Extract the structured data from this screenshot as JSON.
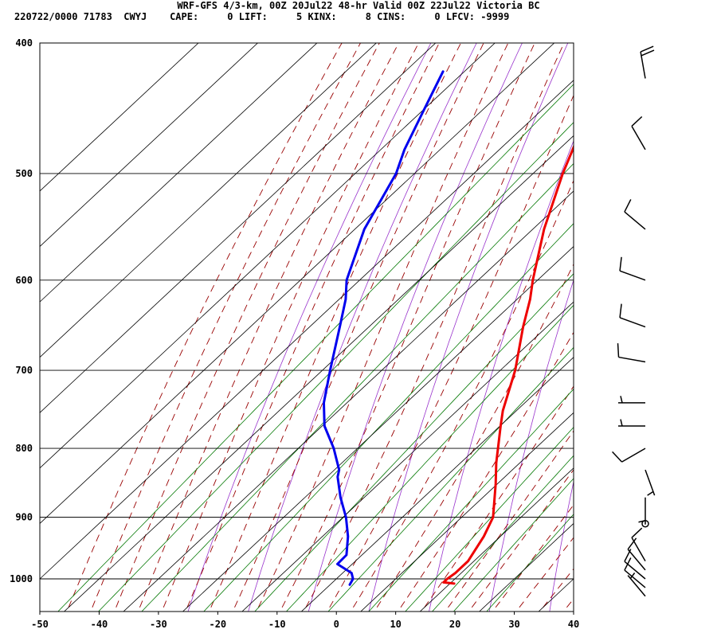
{
  "header": {
    "title": "WRF-GFS 4/3-km, 00Z 20Jul22 48-hr Valid 00Z 22Jul22 Victoria BC",
    "info": "220722/0000 71783  CWYJ    CAPE:     0 LIFT:     5 KINX:     8 CINS:     0 LFCV: -9999"
  },
  "chart_data": {
    "type": "line",
    "title": "WRF-GFS 4/3-km, 00Z 20Jul22 48-hr Valid 00Z 22Jul22 Victoria BC",
    "subtitle": "220722/0000 71783  CWYJ    CAPE:     0 LIFT:     5 KINX:     8 CINS:     0 LFCV: -9999",
    "xlabel": "",
    "ylabel": "",
    "x_axis": {
      "range": [
        -50,
        40
      ],
      "ticks": [
        -50,
        -40,
        -30,
        -20,
        -10,
        0,
        10,
        20,
        30,
        40
      ],
      "unit": "°C (skewed)"
    },
    "y_axis": {
      "range": [
        1040,
        400
      ],
      "scale": "log",
      "ticks": [
        400,
        500,
        600,
        700,
        800,
        900,
        1000
      ],
      "unit": "hPa"
    },
    "grid": true,
    "series": [
      {
        "color": "#ee0000",
        "points": [
          {
            "p": 1008,
            "t": 20.7
          },
          {
            "p": 1006,
            "t": 18.7
          },
          {
            "p": 1000,
            "t": 18.7
          },
          {
            "p": 990,
            "t": 19.0
          },
          {
            "p": 970,
            "t": 19.0
          },
          {
            "p": 930,
            "t": 17.2
          },
          {
            "p": 900,
            "t": 15.3
          },
          {
            "p": 880,
            "t": 13.1
          },
          {
            "p": 850,
            "t": 9.7
          },
          {
            "p": 820,
            "t": 6.0
          },
          {
            "p": 800,
            "t": 3.7
          },
          {
            "p": 770,
            "t": 0.1
          },
          {
            "p": 750,
            "t": -2.3
          },
          {
            "p": 700,
            "t": -7.5
          },
          {
            "p": 650,
            "t": -14.0
          },
          {
            "p": 620,
            "t": -17.8
          },
          {
            "p": 600,
            "t": -20.8
          },
          {
            "p": 550,
            "t": -28.1
          },
          {
            "p": 500,
            "t": -35.0
          },
          {
            "p": 470,
            "t": -39.0
          },
          {
            "p": 450,
            "t": -42.5
          },
          {
            "p": 420,
            "t": -47.3
          }
        ]
      },
      {
        "color": "#0000ee",
        "points": [
          {
            "p": 1010,
            "t": 3.3
          },
          {
            "p": 1000,
            "t": 2.8
          },
          {
            "p": 990,
            "t": 1.5
          },
          {
            "p": 975,
            "t": -2.5
          },
          {
            "p": 960,
            "t": -2.6
          },
          {
            "p": 930,
            "t": -5.7
          },
          {
            "p": 900,
            "t": -9.5
          },
          {
            "p": 870,
            "t": -14.0
          },
          {
            "p": 840,
            "t": -18.2
          },
          {
            "p": 830,
            "t": -19.2
          },
          {
            "p": 800,
            "t": -24.0
          },
          {
            "p": 770,
            "t": -29.6
          },
          {
            "p": 740,
            "t": -33.9
          },
          {
            "p": 700,
            "t": -38.7
          },
          {
            "p": 650,
            "t": -44.9
          },
          {
            "p": 620,
            "t": -48.9
          },
          {
            "p": 600,
            "t": -52.2
          },
          {
            "p": 550,
            "t": -58.4
          },
          {
            "p": 500,
            "t": -63.1
          },
          {
            "p": 480,
            "t": -66.0
          },
          {
            "p": 450,
            "t": -69.7
          },
          {
            "p": 420,
            "t": -73.6
          }
        ]
      }
    ],
    "wind_barbs": [
      {
        "p": 425,
        "dir_deg": 350,
        "kt": 20
      },
      {
        "p": 480,
        "dir_deg": 330,
        "kt": 10
      },
      {
        "p": 550,
        "dir_deg": 310,
        "kt": 10
      },
      {
        "p": 600,
        "dir_deg": 290,
        "kt": 10
      },
      {
        "p": 650,
        "dir_deg": 290,
        "kt": 10
      },
      {
        "p": 690,
        "dir_deg": 280,
        "kt": 10
      },
      {
        "p": 740,
        "dir_deg": 270,
        "kt": 5
      },
      {
        "p": 770,
        "dir_deg": 270,
        "kt": 5
      },
      {
        "p": 800,
        "dir_deg": 240,
        "kt": 10
      },
      {
        "p": 830,
        "dir_deg": 160,
        "kt": 5
      },
      {
        "p": 870,
        "dir_deg": 180,
        "kt": 5
      },
      {
        "p": 910,
        "dir_deg": 0,
        "kt": 0
      },
      {
        "p": 970,
        "dir_deg": 330,
        "kt": 10
      },
      {
        "p": 985,
        "dir_deg": 320,
        "kt": 10
      },
      {
        "p": 1000,
        "dir_deg": 310,
        "kt": 10
      },
      {
        "p": 1015,
        "dir_deg": 310,
        "kt": 10
      },
      {
        "p": 1030,
        "dir_deg": 320,
        "kt": 5
      }
    ],
    "background_lines": {
      "dry_adiabat_color": "#9933cc",
      "moist_adiabat_color": "#990000",
      "mixing_ratio_color": "#007700",
      "isotherm_color": "#000000"
    }
  }
}
